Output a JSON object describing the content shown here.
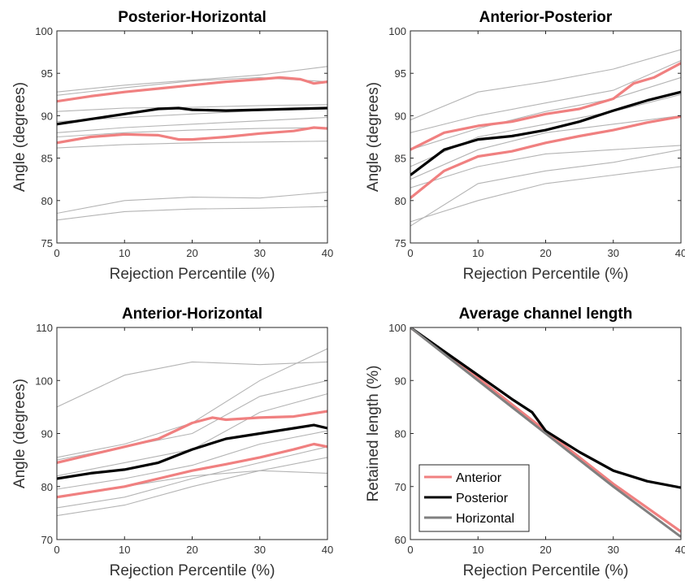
{
  "colors": {
    "anterior": "#f08080",
    "posterior": "#000000",
    "horizontal": "#808080",
    "individual": "#b4b4b4"
  },
  "chart_data": [
    {
      "type": "line",
      "title": "Posterior-Horizontal",
      "xlabel": "Rejection Percentile (%)",
      "ylabel": "Angle (degrees)",
      "xlim": [
        0,
        40
      ],
      "ylim": [
        75,
        100
      ],
      "xticks": [
        "0",
        "10",
        "20",
        "30",
        "40"
      ],
      "yticks": [
        "75",
        "80",
        "85",
        "90",
        "95",
        "100"
      ],
      "grid": false,
      "individual_series": [
        {
          "x": [
            0,
            10,
            20,
            30,
            40
          ],
          "values": [
            92.8,
            93.6,
            94.2,
            94.8,
            95.8
          ]
        },
        {
          "x": [
            0,
            10,
            20,
            30,
            40
          ],
          "values": [
            92.4,
            93.3,
            94.1,
            94.5,
            94.0
          ]
        },
        {
          "x": [
            0,
            10,
            20,
            30,
            40
          ],
          "values": [
            90.5,
            90.9,
            91.0,
            91.2,
            91.3
          ]
        },
        {
          "x": [
            0,
            10,
            20,
            30,
            40
          ],
          "values": [
            89.3,
            89.8,
            90.2,
            90.6,
            90.8
          ]
        },
        {
          "x": [
            0,
            10,
            20,
            30,
            40
          ],
          "values": [
            88.0,
            88.6,
            89.0,
            89.4,
            89.8
          ]
        },
        {
          "x": [
            0,
            10,
            20,
            30,
            40
          ],
          "values": [
            87.5,
            88.0,
            88.3,
            88.5,
            88.6
          ]
        },
        {
          "x": [
            0,
            10,
            20,
            30,
            40
          ],
          "values": [
            86.2,
            86.6,
            86.8,
            86.9,
            87.0
          ]
        },
        {
          "x": [
            0,
            10,
            20,
            30,
            40
          ],
          "values": [
            78.5,
            80.0,
            80.4,
            80.3,
            81.0
          ]
        },
        {
          "x": [
            0,
            10,
            20,
            30,
            40
          ],
          "values": [
            77.7,
            78.7,
            79.0,
            79.1,
            79.3
          ]
        }
      ],
      "series": [
        {
          "color": "#f08080",
          "x": [
            0,
            5,
            10,
            15,
            20,
            25,
            30,
            33,
            36,
            38,
            40
          ],
          "values": [
            91.7,
            92.3,
            92.8,
            93.2,
            93.6,
            94.0,
            94.3,
            94.5,
            94.3,
            93.8,
            94.0
          ]
        },
        {
          "color": "#f08080",
          "x": [
            0,
            5,
            10,
            15,
            18,
            20,
            25,
            30,
            35,
            38,
            40
          ],
          "values": [
            86.8,
            87.5,
            87.8,
            87.7,
            87.2,
            87.2,
            87.5,
            87.9,
            88.2,
            88.6,
            88.5
          ]
        },
        {
          "color": "#000000",
          "x": [
            0,
            5,
            10,
            15,
            18,
            20,
            25,
            30,
            35,
            40
          ],
          "values": [
            89.0,
            89.6,
            90.2,
            90.8,
            90.9,
            90.7,
            90.6,
            90.7,
            90.8,
            90.9
          ]
        }
      ]
    },
    {
      "type": "line",
      "title": "Anterior-Posterior",
      "xlabel": "Rejection Percentile (%)",
      "ylabel": "Angle (degrees)",
      "xlim": [
        0,
        40
      ],
      "ylim": [
        75,
        100
      ],
      "xticks": [
        "0",
        "10",
        "20",
        "30",
        "40"
      ],
      "yticks": [
        "75",
        "80",
        "85",
        "90",
        "95",
        "100"
      ],
      "grid": false,
      "individual_series": [
        {
          "x": [
            0,
            10,
            20,
            30,
            40
          ],
          "values": [
            89.5,
            92.8,
            94.0,
            95.5,
            97.8
          ]
        },
        {
          "x": [
            0,
            10,
            20,
            30,
            40
          ],
          "values": [
            88.0,
            90.0,
            91.5,
            93.0,
            96.5
          ]
        },
        {
          "x": [
            0,
            10,
            20,
            30,
            40
          ],
          "values": [
            86.0,
            88.5,
            90.5,
            92.0,
            94.5
          ]
        },
        {
          "x": [
            0,
            10,
            20,
            30,
            40
          ],
          "values": [
            84.0,
            87.5,
            89.0,
            90.5,
            92.5
          ]
        },
        {
          "x": [
            0,
            10,
            20,
            30,
            40
          ],
          "values": [
            82.5,
            86.0,
            88.0,
            89.0,
            90.0
          ]
        },
        {
          "x": [
            0,
            10,
            20,
            30,
            40
          ],
          "values": [
            81.5,
            84.0,
            85.5,
            86.0,
            86.5
          ]
        },
        {
          "x": [
            0,
            10,
            20,
            30,
            40
          ],
          "values": [
            77.0,
            82.0,
            83.5,
            84.5,
            86.0
          ]
        },
        {
          "x": [
            0,
            10,
            20,
            30,
            40
          ],
          "values": [
            77.5,
            80.0,
            82.0,
            83.0,
            84.0
          ]
        }
      ],
      "series": [
        {
          "color": "#f08080",
          "x": [
            0,
            5,
            10,
            15,
            20,
            25,
            30,
            33,
            36,
            40
          ],
          "values": [
            86.0,
            88.0,
            88.8,
            89.3,
            90.2,
            90.8,
            92.0,
            93.8,
            94.5,
            96.2
          ]
        },
        {
          "color": "#f08080",
          "x": [
            0,
            5,
            10,
            15,
            20,
            25,
            30,
            35,
            40
          ],
          "values": [
            80.3,
            83.5,
            85.2,
            85.8,
            86.8,
            87.6,
            88.3,
            89.2,
            89.9
          ]
        },
        {
          "color": "#000000",
          "x": [
            0,
            5,
            10,
            15,
            20,
            25,
            30,
            35,
            40
          ],
          "values": [
            83.0,
            86.0,
            87.2,
            87.6,
            88.3,
            89.3,
            90.6,
            91.8,
            92.8
          ]
        }
      ]
    },
    {
      "type": "line",
      "title": "Anterior-Horizontal",
      "xlabel": "Rejection Percentile (%)",
      "ylabel": "Angle (degrees)",
      "xlim": [
        0,
        40
      ],
      "ylim": [
        70,
        110
      ],
      "xticks": [
        "0",
        "10",
        "20",
        "30",
        "40"
      ],
      "yticks": [
        "70",
        "80",
        "90",
        "100",
        "110"
      ],
      "grid": false,
      "individual_series": [
        {
          "x": [
            0,
            10,
            20,
            30,
            40
          ],
          "values": [
            95.0,
            101.0,
            103.5,
            103.0,
            103.5
          ]
        },
        {
          "x": [
            0,
            10,
            20,
            30,
            40
          ],
          "values": [
            85.5,
            88.0,
            92.0,
            100.0,
            106.0
          ]
        },
        {
          "x": [
            0,
            10,
            20,
            30,
            40
          ],
          "values": [
            85.0,
            87.5,
            90.0,
            97.0,
            100.0
          ]
        },
        {
          "x": [
            0,
            10,
            20,
            30,
            40
          ],
          "values": [
            82.0,
            84.5,
            87.0,
            94.0,
            97.5
          ]
        },
        {
          "x": [
            0,
            10,
            20,
            30,
            40
          ],
          "values": [
            79.5,
            81.5,
            84.0,
            88.0,
            90.5
          ]
        },
        {
          "x": [
            0,
            10,
            20,
            30,
            40
          ],
          "values": [
            78.0,
            80.0,
            82.0,
            83.0,
            82.5
          ]
        },
        {
          "x": [
            0,
            10,
            20,
            30,
            40
          ],
          "values": [
            76.0,
            78.0,
            81.5,
            84.5,
            87.5
          ]
        },
        {
          "x": [
            0,
            10,
            20,
            30,
            40
          ],
          "values": [
            74.5,
            76.5,
            80.0,
            83.0,
            85.5
          ]
        }
      ],
      "series": [
        {
          "color": "#f08080",
          "x": [
            0,
            5,
            10,
            15,
            20,
            23,
            25,
            30,
            35,
            40
          ],
          "values": [
            84.5,
            86.0,
            87.5,
            89.0,
            92.0,
            93.0,
            92.6,
            93.0,
            93.2,
            94.2
          ]
        },
        {
          "color": "#f08080",
          "x": [
            0,
            5,
            10,
            15,
            20,
            25,
            30,
            35,
            38,
            40
          ],
          "values": [
            78.0,
            79.0,
            80.0,
            81.5,
            83.0,
            84.2,
            85.5,
            87.0,
            88.0,
            87.5
          ]
        },
        {
          "color": "#000000",
          "x": [
            0,
            5,
            10,
            15,
            20,
            25,
            30,
            35,
            38,
            40
          ],
          "values": [
            81.5,
            82.5,
            83.2,
            84.5,
            87.0,
            89.0,
            90.0,
            91.0,
            91.6,
            91.0
          ]
        }
      ]
    },
    {
      "type": "line",
      "title": "Average channel length",
      "xlabel": "Rejection Percentile (%)",
      "ylabel": "Retained length (%)",
      "xlim": [
        0,
        40
      ],
      "ylim": [
        60,
        100
      ],
      "xticks": [
        "0",
        "10",
        "20",
        "30",
        "40"
      ],
      "yticks": [
        "60",
        "70",
        "80",
        "90",
        "100"
      ],
      "grid": false,
      "legend": "bottom-left",
      "series": [
        {
          "name": "Anterior",
          "color": "#f08080",
          "x": [
            0,
            10,
            20,
            30,
            40
          ],
          "values": [
            100,
            90.5,
            80.5,
            70.5,
            61.5
          ]
        },
        {
          "name": "Posterior",
          "color": "#000000",
          "x": [
            0,
            5,
            10,
            15,
            18,
            20,
            25,
            30,
            35,
            40
          ],
          "values": [
            100,
            95.5,
            91.0,
            86.5,
            84.0,
            80.5,
            76.5,
            73.0,
            71.0,
            69.8
          ]
        },
        {
          "name": "Horizontal",
          "color": "#808080",
          "x": [
            0,
            10,
            20,
            30,
            40
          ],
          "values": [
            100,
            90.0,
            80.0,
            70.0,
            60.5
          ]
        }
      ]
    }
  ]
}
